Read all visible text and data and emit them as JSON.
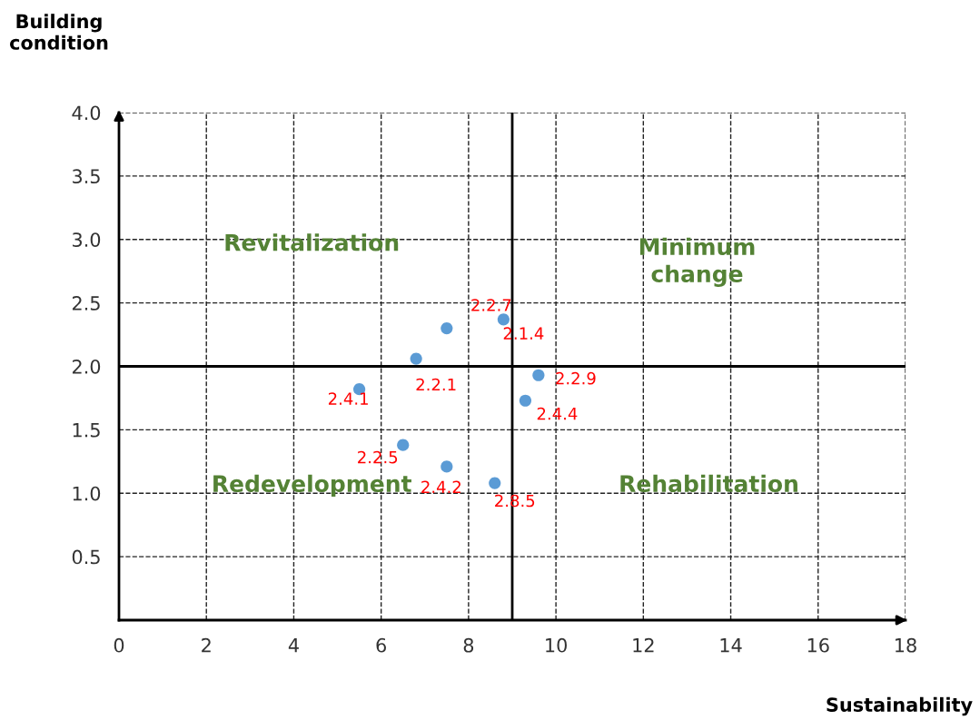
{
  "chart_data": {
    "type": "scatter",
    "xlabel": "Sustainability",
    "ylabel": "Building condition",
    "x": [
      5.5,
      6.8,
      7.5,
      8.8,
      9.6,
      9.3,
      6.5,
      7.5,
      8.6
    ],
    "series": [
      {
        "color": "#5b9bd5",
        "values": [
          1.82,
          2.06,
          2.3,
          2.37,
          1.93,
          1.73,
          1.38,
          1.21,
          1.08
        ],
        "value_labels": [
          "2.4.1",
          "2.2.1",
          "2.2.7",
          "2.1.4",
          "2.2.9",
          "2.4.4",
          "2.2.5",
          "2.4.2",
          "2.8.5"
        ]
      }
    ],
    "xlim": [
      0,
      18
    ],
    "xticks": [
      0,
      2,
      4,
      6,
      8,
      10,
      12,
      14,
      16,
      18
    ],
    "ylim": [
      0,
      4
    ],
    "yticks": [
      {
        "value": 0.5,
        "label": "0.5"
      },
      {
        "value": 1,
        "label": "1.0"
      },
      {
        "value": 1.5,
        "label": "1.5"
      },
      {
        "value": 2,
        "label": "2.0"
      },
      {
        "value": 2.5,
        "label": "2.5"
      },
      {
        "value": 3,
        "label": "3.0"
      },
      {
        "value": 3.5,
        "label": "3.5"
      },
      {
        "value": 4,
        "label": "4.0"
      }
    ],
    "grid": true,
    "marker": "circle",
    "ref_lines": [
      {
        "axis": "x",
        "value": 9,
        "color": "#000000",
        "line_style": "solid"
      },
      {
        "axis": "y",
        "value": 2,
        "color": "#000000",
        "line_style": "solid"
      }
    ],
    "annotations": [
      "Revitalization",
      "Minimum\nchange",
      "Redevelopment",
      "Rehabilitation"
    ]
  }
}
